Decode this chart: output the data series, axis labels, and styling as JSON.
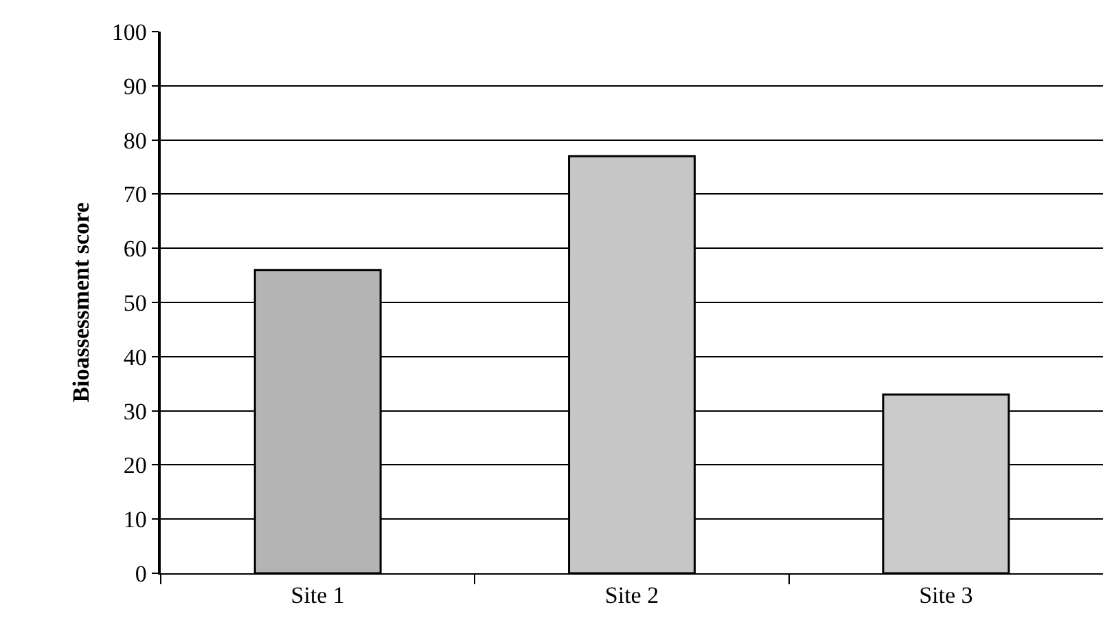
{
  "chart_data": {
    "type": "bar",
    "ylabel": "Bioassessment score",
    "categories": [
      "Site 1",
      "Site 2",
      "Site 3"
    ],
    "values": [
      56,
      77,
      33
    ],
    "colors": [
      "#b4b4b4",
      "#c6c6c6",
      "#cacaca"
    ],
    "ylim": [
      0,
      100
    ],
    "yticks": [
      0,
      10,
      20,
      30,
      40,
      50,
      60,
      70,
      80,
      90,
      100
    ],
    "grid": "y"
  }
}
